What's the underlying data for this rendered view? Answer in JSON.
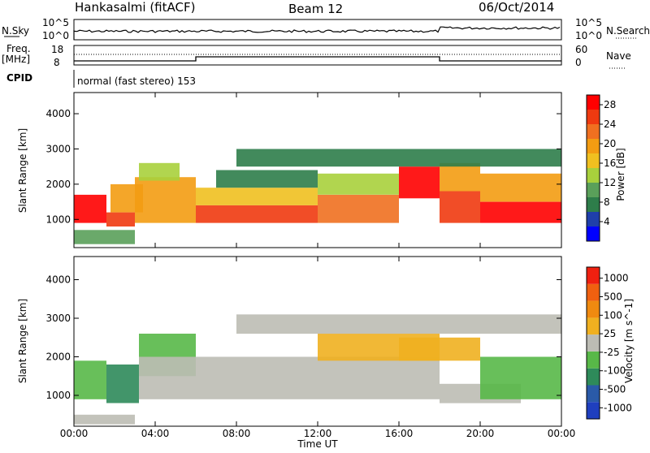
{
  "header": {
    "station": "Hankasalmi (fitACF)",
    "beam": "Beam 12",
    "date": "06/Oct/2014"
  },
  "top_panel": {
    "nsky_label": "N.Sky",
    "nsky_ticks": [
      "10^5",
      "10^0"
    ],
    "nsearch_label": "N.Search",
    "nsearch_ticks": [
      "10^5",
      "10^0"
    ],
    "freq_label": "Freq.",
    "freq_unit": "[MHz]",
    "freq_ticks": [
      "18",
      "8"
    ],
    "nave_label": "Nave",
    "nave_ticks": [
      "60",
      "0"
    ],
    "cpid_label": "CPID",
    "cpid_value": "normal (fast stereo) 153"
  },
  "colors": {
    "power_scale": [
      "#0000ff",
      "#1f3faa",
      "#2e7d4a",
      "#5aa05a",
      "#a8d03c",
      "#f0c020",
      "#f39c12",
      "#f07020",
      "#ef3a10",
      "#ff0000"
    ],
    "velocity_scale": [
      "#1f3fbf",
      "#2a5aa8",
      "#2e8a5a",
      "#58b848",
      "#bcbcb4",
      "#f0b020",
      "#f08a10",
      "#f06010",
      "#ef2010"
    ],
    "ground_scatter": "#bcbcb4"
  },
  "chart_data": [
    {
      "type": "heatmap",
      "title": "Hankasalmi (fitACF) Beam 12 06/Oct/2014",
      "xlabel": "Time UT",
      "ylabel": "Slant Range [km]",
      "x_ticks": [
        "00:00",
        "04:00",
        "08:00",
        "12:00",
        "16:00",
        "20:00",
        "00:00"
      ],
      "y_ticks": [
        "1000",
        "2000",
        "3000",
        "4000"
      ],
      "xlim": [
        0,
        24
      ],
      "ylim": [
        200,
        4600
      ],
      "colorbar_label": "Power [dB]",
      "colorbar_ticks": [
        "4",
        "8",
        "12",
        "16",
        "20",
        "24",
        "28"
      ],
      "clim": [
        0,
        30
      ],
      "regions": [
        {
          "t": [
            0.0,
            1.6
          ],
          "r": [
            900,
            1700
          ],
          "value": 27
        },
        {
          "t": [
            1.6,
            3.0
          ],
          "r": [
            800,
            1200
          ],
          "value": 26
        },
        {
          "t": [
            1.8,
            3.4
          ],
          "r": [
            1200,
            2000
          ],
          "value": 18
        },
        {
          "t": [
            3.0,
            6.0
          ],
          "r": [
            900,
            2200
          ],
          "value": 20
        },
        {
          "t": [
            3.2,
            5.2
          ],
          "r": [
            2100,
            2600
          ],
          "value": 14
        },
        {
          "t": [
            6.0,
            12.0
          ],
          "r": [
            900,
            1400
          ],
          "value": 24
        },
        {
          "t": [
            6.0,
            12.0
          ],
          "r": [
            1400,
            1900
          ],
          "value": 16
        },
        {
          "t": [
            7.0,
            12.0
          ],
          "r": [
            1900,
            2400
          ],
          "value": 8
        },
        {
          "t": [
            12.0,
            16.0
          ],
          "r": [
            900,
            1700
          ],
          "value": 22
        },
        {
          "t": [
            12.0,
            16.0
          ],
          "r": [
            1700,
            2300
          ],
          "value": 13
        },
        {
          "t": [
            16.0,
            18.0
          ],
          "r": [
            1600,
            2500
          ],
          "value": 27
        },
        {
          "t": [
            18.0,
            20.0
          ],
          "r": [
            900,
            1800
          ],
          "value": 24
        },
        {
          "t": [
            18.0,
            20.0
          ],
          "r": [
            1800,
            2600
          ],
          "value": 19
        },
        {
          "t": [
            20.0,
            24.0
          ],
          "r": [
            900,
            1500
          ],
          "value": 27
        },
        {
          "t": [
            20.0,
            24.0
          ],
          "r": [
            1500,
            2300
          ],
          "value": 20
        },
        {
          "t": [
            8.0,
            24.0
          ],
          "r": [
            2500,
            3000
          ],
          "value": 6
        },
        {
          "t": [
            0.0,
            3.0
          ],
          "r": [
            300,
            700
          ],
          "value": 9
        }
      ]
    },
    {
      "type": "heatmap",
      "xlabel": "Time UT",
      "ylabel": "Slant Range [km]",
      "x_ticks": [
        "00:00",
        "04:00",
        "08:00",
        "12:00",
        "16:00",
        "20:00",
        "00:00"
      ],
      "y_ticks": [
        "1000",
        "2000",
        "3000",
        "4000"
      ],
      "xlim": [
        0,
        24
      ],
      "ylim": [
        200,
        4600
      ],
      "colorbar_label": "Velocity [m s^-1]",
      "colorbar_ticks": [
        "1000",
        "500",
        "100",
        "25",
        "-25",
        "-100",
        "-500",
        "-1000"
      ],
      "clim": [
        -1000,
        1000
      ],
      "regions": [
        {
          "t": [
            0.0,
            1.6
          ],
          "r": [
            900,
            1900
          ],
          "value": -300
        },
        {
          "t": [
            1.6,
            3.2
          ],
          "r": [
            800,
            1800
          ],
          "value": -400
        },
        {
          "t": [
            3.2,
            6.0
          ],
          "r": [
            1500,
            2600
          ],
          "value": -150
        },
        {
          "t": [
            3.2,
            18.0
          ],
          "r": [
            900,
            2000
          ],
          "value": 0
        },
        {
          "t": [
            12.0,
            18.0
          ],
          "r": [
            1900,
            2600
          ],
          "value": 150
        },
        {
          "t": [
            16.0,
            20.0
          ],
          "r": [
            1900,
            2500
          ],
          "value": 300
        },
        {
          "t": [
            18.0,
            22.0
          ],
          "r": [
            800,
            1300
          ],
          "value": 0
        },
        {
          "t": [
            20.0,
            24.0
          ],
          "r": [
            900,
            2000
          ],
          "value": -300
        },
        {
          "t": [
            8.0,
            24.0
          ],
          "r": [
            2600,
            3100
          ],
          "value": 0
        },
        {
          "t": [
            0.0,
            3.0
          ],
          "r": [
            250,
            500
          ],
          "value": -100
        }
      ]
    }
  ]
}
